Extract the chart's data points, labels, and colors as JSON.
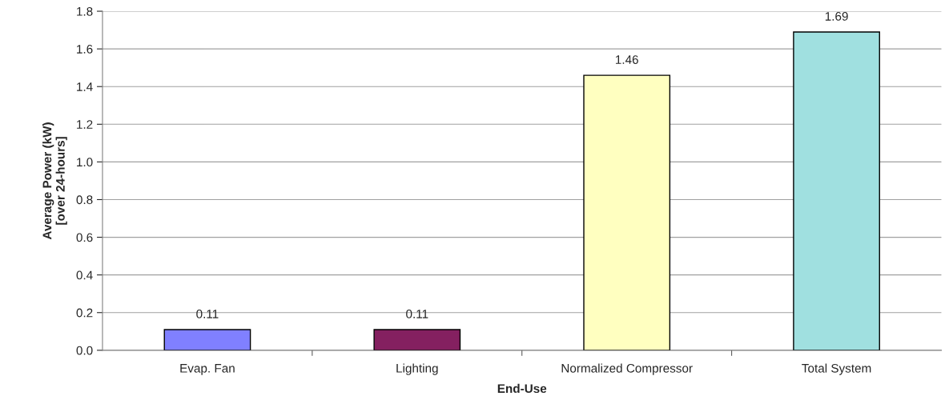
{
  "chart_data": {
    "type": "bar",
    "xlabel": "End-Use",
    "ylabel": "Average Power (kW)\n[over 24-hours]",
    "categories": [
      "Evap. Fan",
      "Lighting",
      "Normalized Compressor",
      "Total System"
    ],
    "values": [
      0.11,
      0.11,
      1.46,
      1.69
    ],
    "colors": [
      "#8080ff",
      "#842060",
      "#ffffc0",
      "#a0e0e0"
    ],
    "ylim": [
      0,
      1.8
    ],
    "yticks": [
      {
        "value": 0,
        "label": "0.0"
      },
      {
        "value": 0.2,
        "label": "0.2"
      },
      {
        "value": 0.4,
        "label": "0.4"
      },
      {
        "value": 0.6,
        "label": "0.6"
      },
      {
        "value": 0.8,
        "label": "0.8"
      },
      {
        "value": 1.0,
        "label": "1.0"
      },
      {
        "value": 1.2,
        "label": "1.2"
      },
      {
        "value": 1.4,
        "label": "1.4"
      },
      {
        "value": 1.6,
        "label": "1.6"
      },
      {
        "value": 1.8,
        "label": "1.8"
      }
    ],
    "grid": "y",
    "data_labels": true
  }
}
